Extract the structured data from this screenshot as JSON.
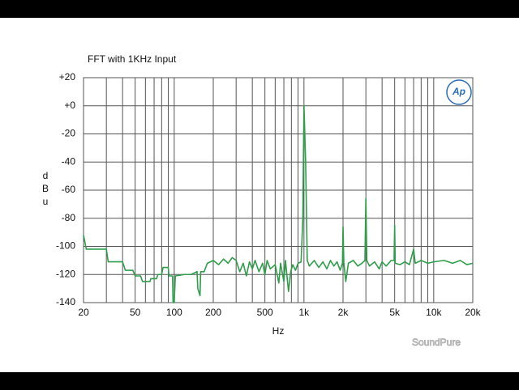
{
  "chart_data": {
    "type": "line",
    "title": "FFT with 1KHz Input",
    "xlabel": "Hz",
    "ylabel": "dBu",
    "xscale": "log",
    "grid": true,
    "color": "#2e9e4a",
    "xlim": [
      20,
      20000
    ],
    "ylim": [
      -140,
      20
    ],
    "xticks": [
      20,
      50,
      100,
      200,
      500,
      {
        "value": 1000,
        "label": "1k"
      },
      {
        "value": 2000,
        "label": "2k"
      },
      {
        "value": 5000,
        "label": "5k"
      },
      {
        "value": 10000,
        "label": "10k"
      },
      {
        "value": 20000,
        "label": "20k"
      }
    ],
    "x_minor_ticks": [
      30,
      40,
      60,
      70,
      80,
      90,
      300,
      400,
      600,
      700,
      800,
      900,
      3000,
      4000,
      6000,
      7000,
      8000,
      9000
    ],
    "yticks": [
      {
        "value": 20,
        "label": "+20"
      },
      {
        "value": 0,
        "label": "+0"
      },
      -20,
      -40,
      -60,
      -80,
      -100,
      -120,
      -140
    ],
    "x": [
      20,
      21,
      30,
      31,
      40,
      42,
      48,
      50,
      55,
      57,
      65,
      66,
      73,
      75,
      80,
      82,
      90,
      91,
      97,
      98,
      100,
      102,
      120,
      135,
      150,
      152,
      158,
      160,
      170,
      180,
      200,
      220,
      240,
      260,
      280,
      300,
      320,
      340,
      360,
      380,
      400,
      420,
      450,
      480,
      500,
      520,
      550,
      600,
      640,
      660,
      700,
      720,
      760,
      790,
      820,
      860,
      900,
      950,
      980,
      1000,
      1030,
      1060,
      1100,
      1200,
      1300,
      1400,
      1500,
      1600,
      1700,
      1800,
      1900,
      1980,
      2000,
      2030,
      2100,
      2200,
      2400,
      2600,
      2800,
      2950,
      3000,
      3050,
      3200,
      3500,
      3800,
      4000,
      4300,
      4700,
      4950,
      5000,
      5050,
      5500,
      6000,
      6500,
      7000,
      7200,
      8000,
      9000,
      10000,
      12000,
      14000,
      16000,
      18000,
      20000
    ],
    "values": [
      -92,
      -102,
      -102,
      -111,
      -111,
      -117,
      -117,
      -121,
      -121,
      -125,
      -125,
      -123,
      -123,
      -120,
      -120,
      -115,
      -115,
      -121,
      -121,
      -140,
      -140,
      -121,
      -120,
      -120,
      -118,
      -130,
      -135,
      -118,
      -118,
      -112,
      -110,
      -113,
      -109,
      -112,
      -108,
      -110,
      -118,
      -112,
      -121,
      -111,
      -116,
      -110,
      -118,
      -112,
      -120,
      -110,
      -116,
      -113,
      -126,
      -112,
      -125,
      -110,
      -132,
      -118,
      -113,
      -117,
      -112,
      -111,
      -80,
      0,
      -40,
      -110,
      -114,
      -110,
      -115,
      -111,
      -116,
      -110,
      -114,
      -111,
      -117,
      -112,
      -86,
      -112,
      -125,
      -112,
      -110,
      -114,
      -112,
      -110,
      -66,
      -110,
      -114,
      -111,
      -116,
      -111,
      -114,
      -110,
      -110,
      -85,
      -112,
      -113,
      -111,
      -113,
      -102,
      -112,
      -110,
      -112,
      -111,
      -110,
      -112,
      -110,
      -113,
      -112
    ]
  },
  "logo": "Ap",
  "watermark": "SoundPure"
}
